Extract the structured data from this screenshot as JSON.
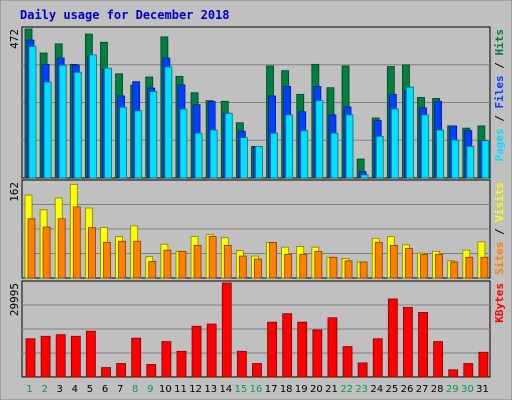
{
  "chart_data": {
    "type": "bar",
    "title": "Daily usage for December 2018",
    "categories": [
      "1",
      "2",
      "3",
      "4",
      "5",
      "6",
      "7",
      "8",
      "9",
      "10",
      "11",
      "12",
      "13",
      "14",
      "15",
      "16",
      "17",
      "18",
      "19",
      "20",
      "21",
      "22",
      "23",
      "24",
      "25",
      "26",
      "27",
      "28",
      "29",
      "30",
      "31"
    ],
    "weekend_days": [
      "1",
      "2",
      "8",
      "9",
      "15",
      "16",
      "22",
      "23",
      "29",
      "30"
    ],
    "panels": [
      {
        "id": "hits",
        "axis_max_label": "472",
        "ylim": [
          0,
          472
        ],
        "series": [
          {
            "name": "Hits",
            "color": "#008040",
            "values": [
              472,
              396,
              425,
              360,
              456,
              430,
              330,
              294,
              320,
              447,
              322,
              270,
              245,
              243,
              175,
              100,
              355,
              340,
              265,
              360,
              286,
              355,
              60,
              190,
              353,
              358,
              255,
              252,
              165,
              158,
              165
            ]
          },
          {
            "name": "Files",
            "color": "#0040ff",
            "values": [
              437,
              360,
              380,
              358,
              385,
              345,
              260,
              305,
              285,
              380,
              295,
              232,
              242,
              205,
              148,
              100,
              260,
              290,
              210,
              290,
              200,
              225,
              20,
              182,
              265,
              275,
              222,
              243,
              165,
              150,
              118
            ]
          },
          {
            "name": "Pages",
            "color": "#00e0ff",
            "values": [
              417,
              304,
              357,
              335,
              390,
              348,
              224,
              213,
              274,
              352,
              218,
              142,
              152,
              205,
              128,
              100,
              142,
              200,
              150,
              245,
              142,
              200,
              10,
              132,
              219,
              288,
              200,
              152,
              120,
              100,
              118
            ]
          }
        ]
      },
      {
        "id": "visits",
        "axis_max_label": "162",
        "ylim": [
          0,
          162
        ],
        "series": [
          {
            "name": "Visits",
            "color": "#ffff00",
            "values": [
              140,
              115,
              135,
              158,
              118,
              85,
              70,
              88,
              36,
              57,
              45,
              70,
              73,
              68,
              46,
              37,
              60,
              52,
              53,
              52,
              35,
              33,
              27,
              67,
              70,
              56,
              42,
              45,
              29,
              47,
              61
            ]
          },
          {
            "name": "Sites",
            "color": "#ff8000",
            "values": [
              100,
              86,
              100,
              120,
              85,
              60,
              62,
              62,
              28,
              47,
              45,
              55,
              70,
              55,
              37,
              32,
              60,
              40,
              40,
              45,
              35,
              29,
              27,
              60,
              55,
              50,
              40,
              40,
              27,
              35,
              35
            ]
          }
        ]
      },
      {
        "id": "kbytes",
        "axis_max_label": "29995",
        "ylim": [
          0,
          29995
        ],
        "series": [
          {
            "name": "KBytes",
            "color": "#ff0000",
            "values": [
              12200,
              13000,
              13500,
              13000,
              14600,
              3000,
              4300,
              12400,
              4000,
              11300,
              8200,
              16200,
              16900,
              29995,
              8200,
              4300,
              17500,
              20200,
              17500,
              15000,
              18900,
              9700,
              4500,
              12200,
              24900,
              22200,
              20600,
              11300,
              2300,
              4300,
              7900
            ]
          }
        ]
      }
    ]
  }
}
